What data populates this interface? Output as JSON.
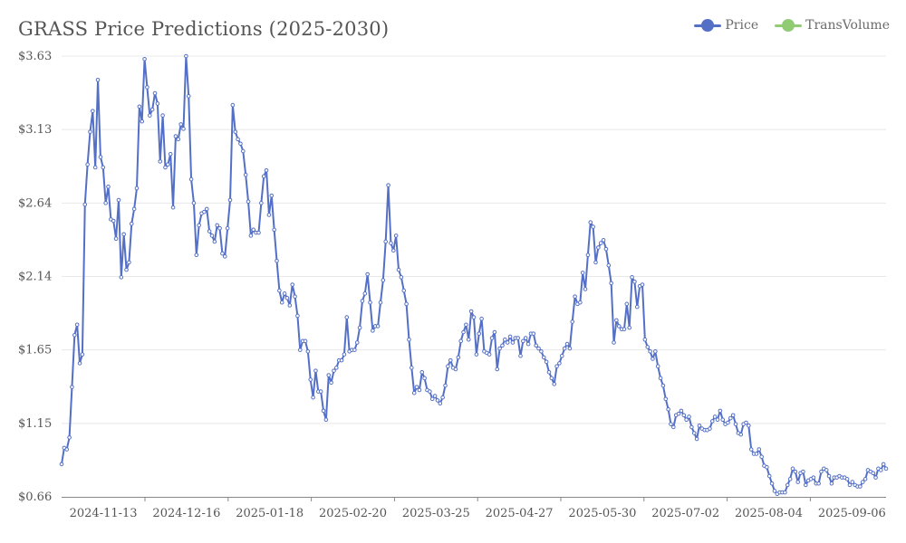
{
  "chart_data": {
    "type": "line",
    "title": "GRASS Price Predictions (2025-2030)",
    "legend": [
      "Price",
      "TransVolume"
    ],
    "legend_position": "top-right",
    "colors": {
      "price": "#5470c6",
      "transvolume": "#91cc75",
      "grid": "#e8e8e8",
      "axis": "#888888"
    },
    "y_ticks": [
      "$0.66",
      "$1.15",
      "$1.65",
      "$2.14",
      "$2.64",
      "$3.13",
      "$3.63"
    ],
    "ylim": [
      0.66,
      3.63
    ],
    "x_ticks": [
      "2024-11-13",
      "2024-12-16",
      "2025-01-18",
      "2025-02-20",
      "2025-03-25",
      "2025-04-27",
      "2025-05-30",
      "2025-07-02",
      "2025-08-04",
      "2025-09-06"
    ],
    "grid": true,
    "series": [
      {
        "name": "Price",
        "values": [
          0.88,
          0.99,
          0.98,
          1.06,
          1.4,
          1.75,
          1.82,
          1.56,
          1.62,
          2.63,
          2.9,
          3.12,
          3.26,
          2.88,
          3.47,
          2.95,
          2.88,
          2.64,
          2.75,
          2.53,
          2.52,
          2.4,
          2.66,
          2.14,
          2.43,
          2.19,
          2.24,
          2.5,
          2.6,
          2.74,
          3.29,
          3.19,
          3.61,
          3.42,
          3.23,
          3.27,
          3.38,
          3.31,
          2.92,
          3.23,
          2.88,
          2.9,
          2.97,
          2.61,
          3.09,
          3.07,
          3.17,
          3.14,
          3.63,
          3.36,
          2.8,
          2.64,
          2.29,
          2.49,
          2.57,
          2.58,
          2.6,
          2.45,
          2.42,
          2.38,
          2.49,
          2.47,
          2.3,
          2.28,
          2.47,
          2.66,
          3.3,
          3.12,
          3.07,
          3.04,
          2.99,
          2.83,
          2.65,
          2.42,
          2.46,
          2.44,
          2.44,
          2.64,
          2.82,
          2.86,
          2.56,
          2.69,
          2.46,
          2.25,
          2.05,
          1.97,
          2.03,
          2.0,
          1.95,
          2.09,
          2.01,
          1.88,
          1.65,
          1.71,
          1.71,
          1.64,
          1.45,
          1.33,
          1.51,
          1.37,
          1.37,
          1.24,
          1.18,
          1.48,
          1.43,
          1.51,
          1.53,
          1.58,
          1.58,
          1.62,
          1.87,
          1.64,
          1.65,
          1.65,
          1.7,
          1.8,
          1.98,
          2.03,
          2.16,
          1.97,
          1.78,
          1.81,
          1.81,
          1.97,
          2.12,
          2.38,
          2.76,
          2.37,
          2.32,
          2.42,
          2.19,
          2.14,
          2.05,
          1.96,
          1.72,
          1.53,
          1.36,
          1.4,
          1.38,
          1.5,
          1.46,
          1.38,
          1.37,
          1.32,
          1.34,
          1.31,
          1.29,
          1.33,
          1.41,
          1.54,
          1.58,
          1.53,
          1.52,
          1.6,
          1.71,
          1.77,
          1.82,
          1.72,
          1.91,
          1.87,
          1.62,
          1.76,
          1.86,
          1.64,
          1.63,
          1.62,
          1.73,
          1.77,
          1.52,
          1.66,
          1.68,
          1.72,
          1.7,
          1.74,
          1.7,
          1.73,
          1.73,
          1.61,
          1.71,
          1.73,
          1.69,
          1.76,
          1.76,
          1.68,
          1.66,
          1.64,
          1.6,
          1.57,
          1.5,
          1.46,
          1.42,
          1.54,
          1.56,
          1.61,
          1.66,
          1.69,
          1.66,
          1.84,
          2.01,
          1.96,
          1.97,
          2.17,
          2.06,
          2.29,
          2.51,
          2.48,
          2.24,
          2.34,
          2.37,
          2.39,
          2.33,
          2.22,
          2.1,
          1.7,
          1.85,
          1.81,
          1.79,
          1.79,
          1.96,
          1.8,
          2.14,
          2.11,
          1.94,
          2.08,
          2.09,
          1.72,
          1.67,
          1.64,
          1.59,
          1.64,
          1.54,
          1.46,
          1.41,
          1.32,
          1.25,
          1.15,
          1.13,
          1.21,
          1.22,
          1.24,
          1.21,
          1.18,
          1.2,
          1.13,
          1.09,
          1.05,
          1.14,
          1.12,
          1.11,
          1.11,
          1.12,
          1.17,
          1.2,
          1.18,
          1.24,
          1.18,
          1.15,
          1.16,
          1.19,
          1.21,
          1.15,
          1.09,
          1.08,
          1.15,
          1.16,
          1.14,
          0.98,
          0.95,
          0.95,
          0.98,
          0.93,
          0.87,
          0.86,
          0.8,
          0.75,
          0.7,
          0.68,
          0.69,
          0.69,
          0.69,
          0.74,
          0.78,
          0.85,
          0.83,
          0.76,
          0.82,
          0.83,
          0.74,
          0.77,
          0.78,
          0.79,
          0.75,
          0.75,
          0.83,
          0.85,
          0.84,
          0.8,
          0.75,
          0.79,
          0.79,
          0.8,
          0.79,
          0.79,
          0.78,
          0.74,
          0.76,
          0.74,
          0.73,
          0.73,
          0.76,
          0.78,
          0.84,
          0.83,
          0.82,
          0.79,
          0.85,
          0.84,
          0.88,
          0.85
        ]
      },
      {
        "name": "TransVolume",
        "values": []
      }
    ]
  }
}
